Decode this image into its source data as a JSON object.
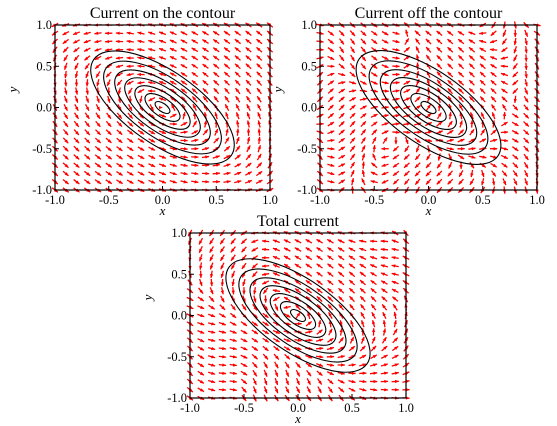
{
  "chart_data": [
    {
      "type": "vector-field-with-contours",
      "title": "Current on the contour",
      "xlabel": "x",
      "ylabel": "y",
      "xlim": [
        -1.0,
        1.0
      ],
      "ylim": [
        -1.0,
        1.0
      ],
      "xticks": [
        "-1.0",
        "-0.5",
        "0.0",
        "0.5",
        "1.0"
      ],
      "yticks": [
        "-1.0",
        "-0.5",
        "0.0",
        "0.5",
        "1.0"
      ],
      "field": "tangential",
      "ellipse_tilt_deg": -35,
      "contour_semi_axes": [
        [
          0.08,
          0.05
        ],
        [
          0.19,
          0.11
        ],
        [
          0.3,
          0.17
        ],
        [
          0.41,
          0.23
        ],
        [
          0.52,
          0.29
        ],
        [
          0.64,
          0.36
        ],
        [
          0.78,
          0.44
        ]
      ],
      "arrow_grid_n": 21,
      "arrow_color": "#ff0000",
      "contour_color": "#000000"
    },
    {
      "type": "vector-field-with-contours",
      "title": "Current off the contour",
      "xlabel": "x",
      "ylabel": "y",
      "xlim": [
        -1.0,
        1.0
      ],
      "ylim": [
        -1.0,
        1.0
      ],
      "xticks": [
        "-1.0",
        "-0.5",
        "0.0",
        "0.5",
        "1.0"
      ],
      "yticks": [
        "-1.0",
        "-0.5",
        "0.0",
        "0.5",
        "1.0"
      ],
      "field": "off-contour",
      "ellipse_tilt_deg": -35,
      "contour_semi_axes": [
        [
          0.08,
          0.05
        ],
        [
          0.19,
          0.11
        ],
        [
          0.3,
          0.17
        ],
        [
          0.41,
          0.23
        ],
        [
          0.52,
          0.29
        ],
        [
          0.64,
          0.36
        ],
        [
          0.78,
          0.44
        ]
      ],
      "arrow_grid_n": 21,
      "arrow_color": "#ff0000",
      "contour_color": "#000000"
    },
    {
      "type": "vector-field-with-contours",
      "title": "Total current",
      "xlabel": "x",
      "ylabel": "y",
      "xlim": [
        -1.0,
        1.0
      ],
      "ylim": [
        -1.0,
        1.0
      ],
      "xticks": [
        "-1.0",
        "-0.5",
        "0.0",
        "0.5",
        "1.0"
      ],
      "yticks": [
        "-1.0",
        "-0.5",
        "0.0",
        "0.5",
        "1.0"
      ],
      "field": "total",
      "ellipse_tilt_deg": -35,
      "contour_semi_axes": [
        [
          0.08,
          0.05
        ],
        [
          0.19,
          0.11
        ],
        [
          0.3,
          0.17
        ],
        [
          0.41,
          0.23
        ],
        [
          0.52,
          0.29
        ],
        [
          0.64,
          0.36
        ],
        [
          0.78,
          0.44
        ]
      ],
      "arrow_grid_n": 21,
      "arrow_color": "#ff0000",
      "contour_color": "#000000"
    }
  ]
}
